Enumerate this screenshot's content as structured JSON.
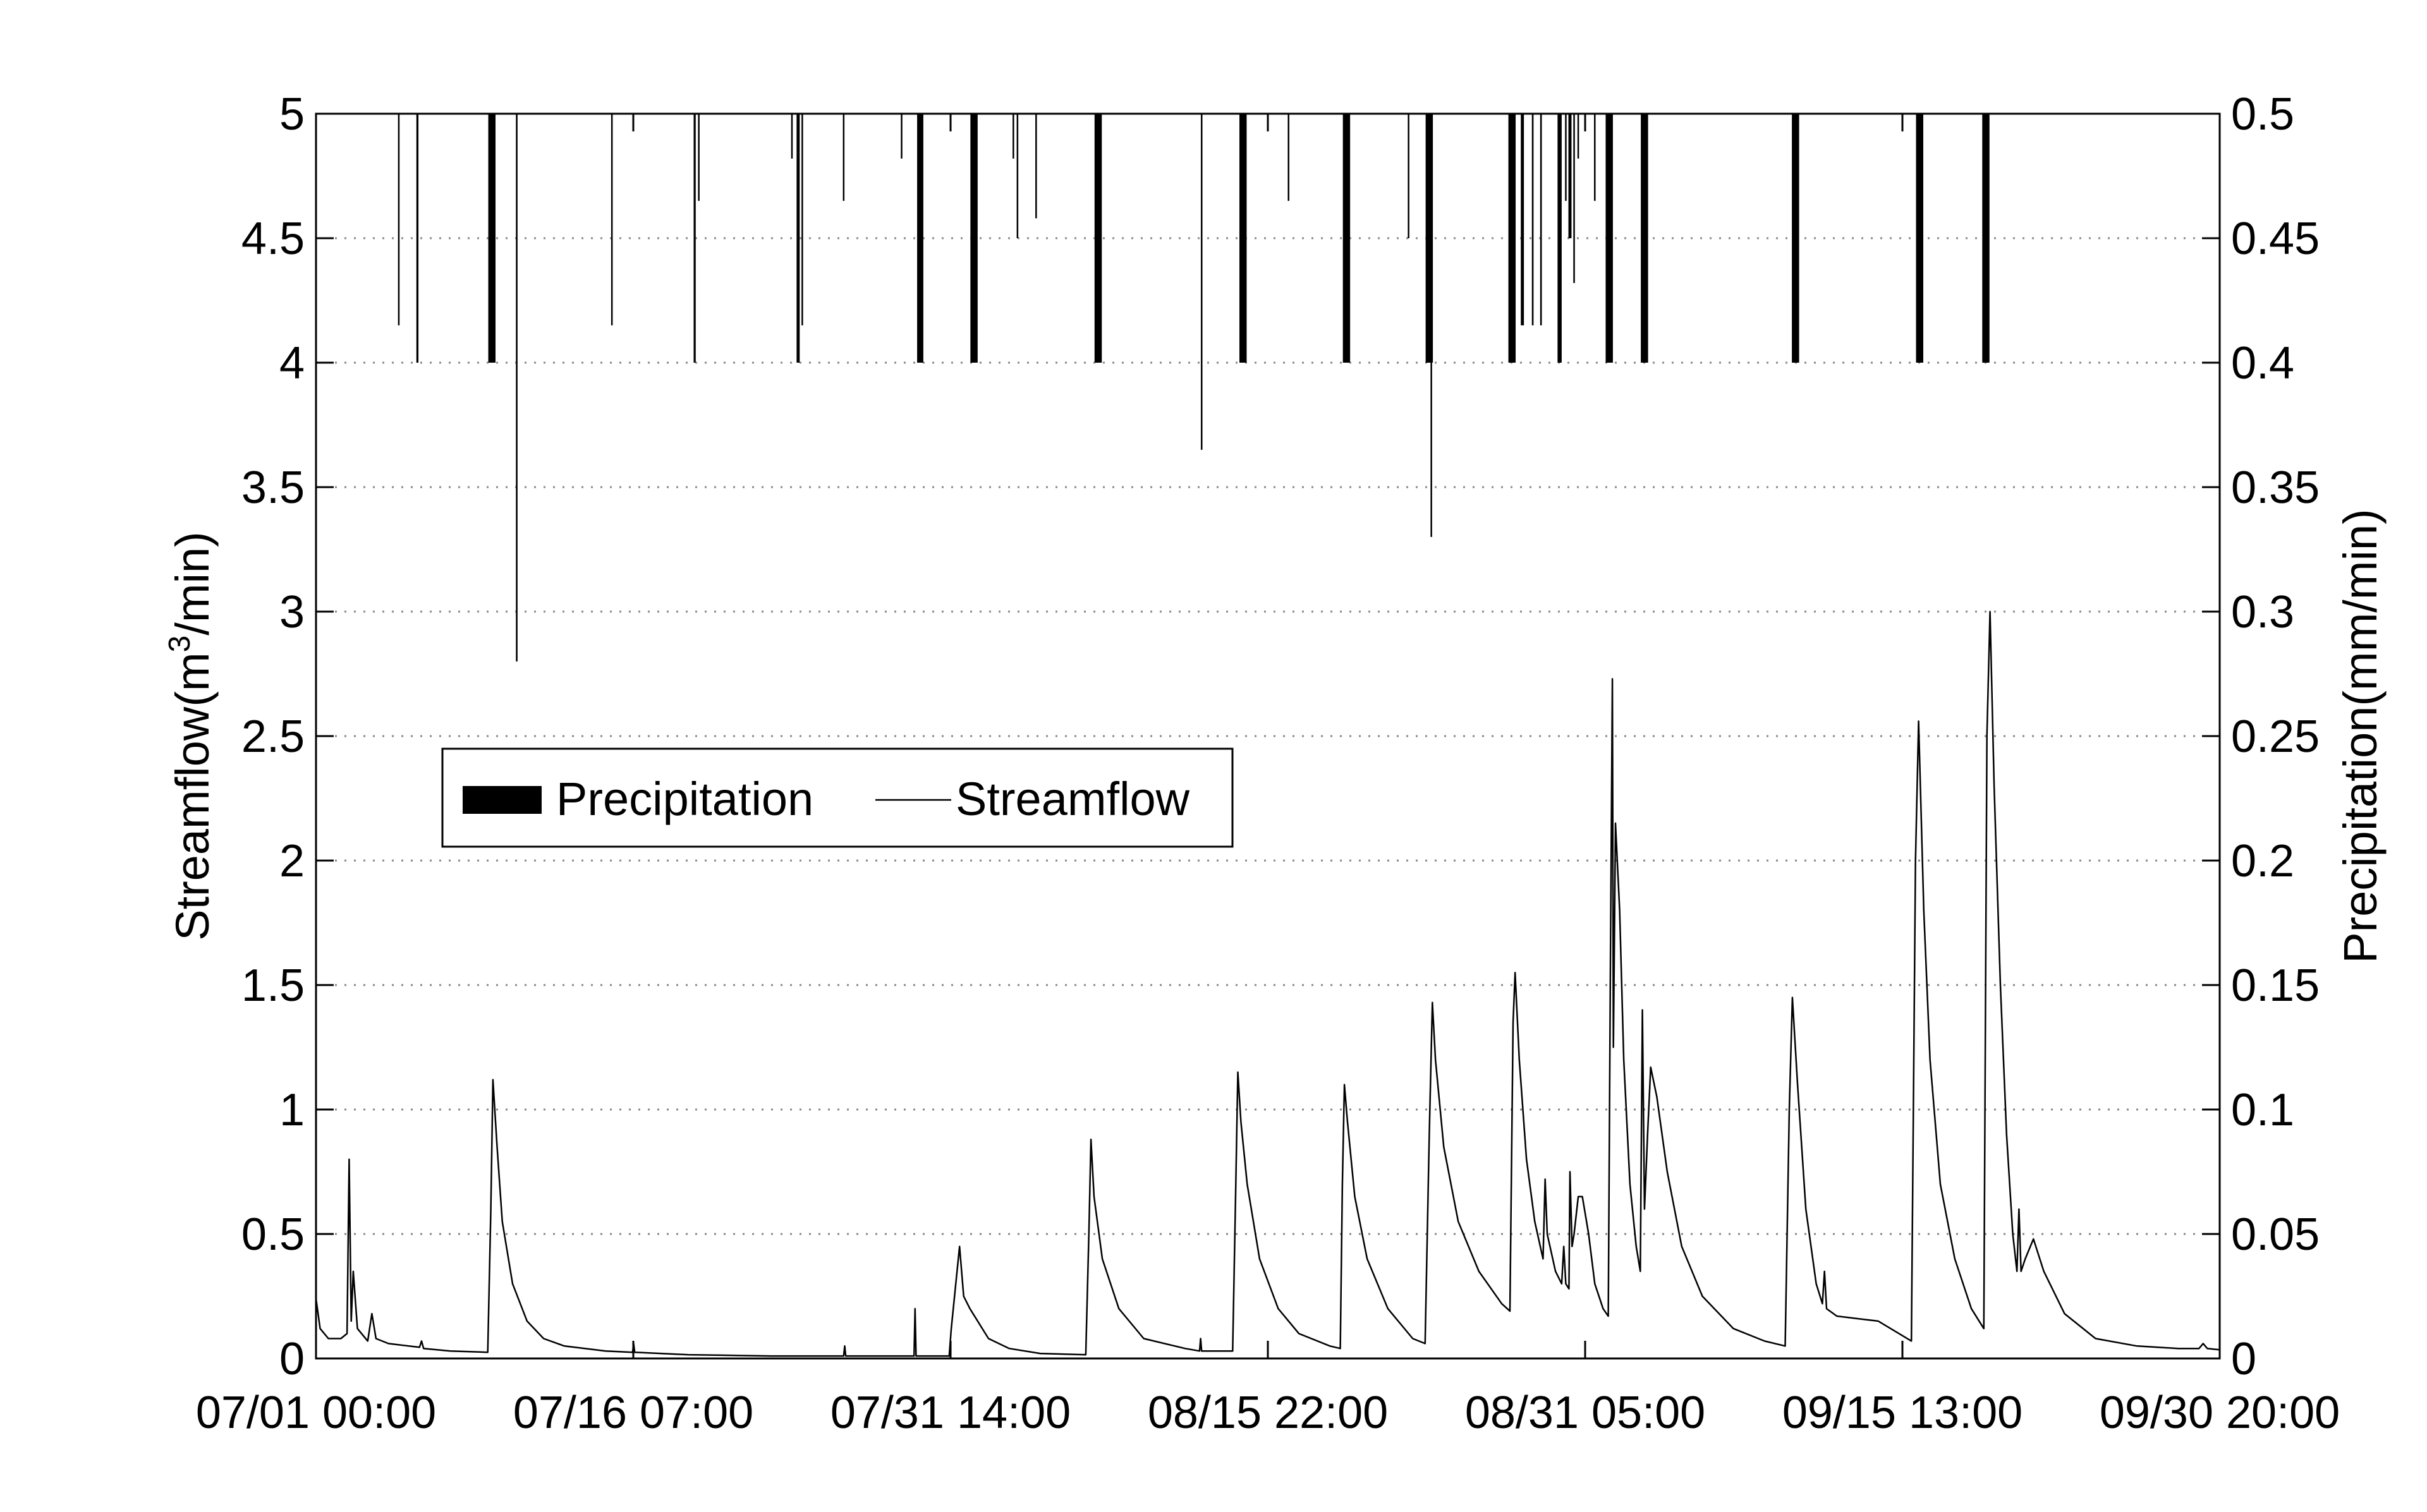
{
  "chart_data": {
    "type": "bar+line",
    "x_tick_labels": [
      "07/01 00:00",
      "07/16 07:00",
      "07/31 14:00",
      "08/15 22:00",
      "08/31 05:00",
      "09/15 13:00",
      "09/30 20:00"
    ],
    "x_range": [
      0,
      92
    ],
    "left_axis": {
      "label_main": "Streamflow(m",
      "label_sup": "3",
      "label_end": "/min)",
      "range": [
        0,
        5
      ],
      "ticks": [
        "0",
        "0.5",
        "1",
        "1.5",
        "2",
        "2.5",
        "3",
        "3.5",
        "4",
        "4.5",
        "5"
      ]
    },
    "right_axis": {
      "label": "Precipitation(mm/min)",
      "range": [
        0,
        0.5
      ],
      "inverted": true,
      "ticks": [
        "0",
        "0.05",
        "0.1",
        "0.15",
        "0.2",
        "0.25",
        "0.3",
        "0.35",
        "0.4",
        "0.45",
        "0.5"
      ]
    },
    "grid": "horizontal-dotted",
    "legend": {
      "placement": "center-left",
      "entries": [
        "Precipitation",
        "Streamflow"
      ]
    },
    "precipitation": {
      "name": "Precipitation",
      "bars": [
        {
          "x": 4.0,
          "v": 0.085,
          "w": 0.06
        },
        {
          "x": 4.9,
          "v": 0.1,
          "w": 0.1
        },
        {
          "x": 8.5,
          "v": 0.1,
          "w": 0.35
        },
        {
          "x": 9.7,
          "v": 0.22,
          "w": 0.08
        },
        {
          "x": 14.3,
          "v": 0.085,
          "w": 0.06
        },
        {
          "x": 18.3,
          "v": 0.1,
          "w": 0.1
        },
        {
          "x": 18.5,
          "v": 0.035,
          "w": 0.06
        },
        {
          "x": 23.0,
          "v": 0.018,
          "w": 0.06
        },
        {
          "x": 23.3,
          "v": 0.1,
          "w": 0.15
        },
        {
          "x": 23.5,
          "v": 0.085,
          "w": 0.06
        },
        {
          "x": 25.5,
          "v": 0.035,
          "w": 0.06
        },
        {
          "x": 28.3,
          "v": 0.018,
          "w": 0.06
        },
        {
          "x": 29.2,
          "v": 0.1,
          "w": 0.3
        },
        {
          "x": 31.8,
          "v": 0.1,
          "w": 0.35
        },
        {
          "x": 33.7,
          "v": 0.018,
          "w": 0.06
        },
        {
          "x": 33.9,
          "v": 0.05,
          "w": 0.06
        },
        {
          "x": 34.8,
          "v": 0.042,
          "w": 0.06
        },
        {
          "x": 37.8,
          "v": 0.1,
          "w": 0.35
        },
        {
          "x": 42.8,
          "v": 0.135,
          "w": 0.06
        },
        {
          "x": 44.8,
          "v": 0.1,
          "w": 0.35
        },
        {
          "x": 47.0,
          "v": 0.035,
          "w": 0.06
        },
        {
          "x": 49.8,
          "v": 0.1,
          "w": 0.35
        },
        {
          "x": 52.8,
          "v": 0.05,
          "w": 0.06
        },
        {
          "x": 53.8,
          "v": 0.1,
          "w": 0.35
        },
        {
          "x": 53.9,
          "v": 0.17,
          "w": 0.06
        },
        {
          "x": 57.8,
          "v": 0.1,
          "w": 0.35
        },
        {
          "x": 58.3,
          "v": 0.085,
          "w": 0.15
        },
        {
          "x": 58.8,
          "v": 0.085,
          "w": 0.08
        },
        {
          "x": 59.2,
          "v": 0.085,
          "w": 0.08
        },
        {
          "x": 60.1,
          "v": 0.1,
          "w": 0.2
        },
        {
          "x": 60.4,
          "v": 0.035,
          "w": 0.06
        },
        {
          "x": 60.6,
          "v": 0.05,
          "w": 0.15
        },
        {
          "x": 60.8,
          "v": 0.068,
          "w": 0.06
        },
        {
          "x": 61.0,
          "v": 0.018,
          "w": 0.06
        },
        {
          "x": 61.8,
          "v": 0.035,
          "w": 0.06
        },
        {
          "x": 62.5,
          "v": 0.1,
          "w": 0.35
        },
        {
          "x": 64.2,
          "v": 0.1,
          "w": 0.35
        },
        {
          "x": 71.5,
          "v": 0.1,
          "w": 0.35
        },
        {
          "x": 77.5,
          "v": 0.1,
          "w": 0.35
        },
        {
          "x": 80.7,
          "v": 0.1,
          "w": 0.35
        }
      ]
    },
    "streamflow": {
      "name": "Streamflow",
      "points": [
        [
          0,
          0.24
        ],
        [
          0.2,
          0.12
        ],
        [
          0.6,
          0.08
        ],
        [
          1.2,
          0.08
        ],
        [
          1.5,
          0.1
        ],
        [
          1.6,
          0.8
        ],
        [
          1.7,
          0.15
        ],
        [
          1.8,
          0.35
        ],
        [
          2.0,
          0.12
        ],
        [
          2.5,
          0.07
        ],
        [
          2.7,
          0.18
        ],
        [
          2.9,
          0.08
        ],
        [
          3.5,
          0.06
        ],
        [
          5.0,
          0.045
        ],
        [
          5.1,
          0.07
        ],
        [
          5.2,
          0.04
        ],
        [
          6.5,
          0.03
        ],
        [
          8.3,
          0.025
        ],
        [
          8.45,
          0.6
        ],
        [
          8.55,
          1.12
        ],
        [
          8.75,
          0.85
        ],
        [
          9.0,
          0.55
        ],
        [
          9.5,
          0.3
        ],
        [
          10.2,
          0.15
        ],
        [
          11,
          0.08
        ],
        [
          12,
          0.05
        ],
        [
          14,
          0.03
        ],
        [
          15.3,
          0.025
        ],
        [
          15.35,
          0.06
        ],
        [
          15.4,
          0.025
        ],
        [
          18,
          0.015
        ],
        [
          22,
          0.01
        ],
        [
          25.5,
          0.01
        ],
        [
          25.55,
          0.05
        ],
        [
          25.6,
          0.01
        ],
        [
          28.9,
          0.01
        ],
        [
          28.95,
          0.2
        ],
        [
          29.0,
          0.01
        ],
        [
          30.6,
          0.01
        ],
        [
          30.7,
          0.12
        ],
        [
          31.1,
          0.45
        ],
        [
          31.3,
          0.25
        ],
        [
          31.6,
          0.2
        ],
        [
          32.5,
          0.08
        ],
        [
          33.5,
          0.04
        ],
        [
          35,
          0.02
        ],
        [
          37.2,
          0.015
        ],
        [
          37.35,
          0.5
        ],
        [
          37.45,
          0.88
        ],
        [
          37.6,
          0.65
        ],
        [
          38.0,
          0.4
        ],
        [
          38.8,
          0.2
        ],
        [
          40,
          0.08
        ],
        [
          42,
          0.04
        ],
        [
          42.7,
          0.03
        ],
        [
          42.75,
          0.08
        ],
        [
          42.8,
          0.03
        ],
        [
          44.3,
          0.03
        ],
        [
          44.45,
          0.7
        ],
        [
          44.55,
          1.15
        ],
        [
          44.7,
          0.95
        ],
        [
          45.0,
          0.7
        ],
        [
          45.6,
          0.4
        ],
        [
          46.5,
          0.2
        ],
        [
          47.5,
          0.1
        ],
        [
          49,
          0.05
        ],
        [
          49.5,
          0.04
        ],
        [
          49.6,
          0.7
        ],
        [
          49.7,
          1.1
        ],
        [
          49.85,
          0.95
        ],
        [
          50.2,
          0.65
        ],
        [
          50.8,
          0.4
        ],
        [
          51.8,
          0.2
        ],
        [
          53,
          0.08
        ],
        [
          53.6,
          0.06
        ],
        [
          53.8,
          0.9
        ],
        [
          53.95,
          1.43
        ],
        [
          54.1,
          1.2
        ],
        [
          54.5,
          0.85
        ],
        [
          55.2,
          0.55
        ],
        [
          56.2,
          0.35
        ],
        [
          57.3,
          0.22
        ],
        [
          57.7,
          0.19
        ],
        [
          57.85,
          1.35
        ],
        [
          57.95,
          1.55
        ],
        [
          58.15,
          1.2
        ],
        [
          58.5,
          0.8
        ],
        [
          58.9,
          0.55
        ],
        [
          59.3,
          0.4
        ],
        [
          59.4,
          0.72
        ],
        [
          59.5,
          0.5
        ],
        [
          59.9,
          0.35
        ],
        [
          60.2,
          0.3
        ],
        [
          60.3,
          0.45
        ],
        [
          60.4,
          0.3
        ],
        [
          60.55,
          0.28
        ],
        [
          60.6,
          0.75
        ],
        [
          60.7,
          0.45
        ],
        [
          60.8,
          0.5
        ],
        [
          61.0,
          0.65
        ],
        [
          61.2,
          0.65
        ],
        [
          61.5,
          0.5
        ],
        [
          61.8,
          0.3
        ],
        [
          62.2,
          0.2
        ],
        [
          62.45,
          0.17
        ],
        [
          62.55,
          1.5
        ],
        [
          62.65,
          2.73
        ],
        [
          62.7,
          1.25
        ],
        [
          62.8,
          2.15
        ],
        [
          63.0,
          1.8
        ],
        [
          63.2,
          1.2
        ],
        [
          63.5,
          0.7
        ],
        [
          63.8,
          0.45
        ],
        [
          64.0,
          0.35
        ],
        [
          64.1,
          1.4
        ],
        [
          64.2,
          0.6
        ],
        [
          64.35,
          0.9
        ],
        [
          64.5,
          1.17
        ],
        [
          64.8,
          1.05
        ],
        [
          65.3,
          0.75
        ],
        [
          66.0,
          0.45
        ],
        [
          67,
          0.25
        ],
        [
          68.5,
          0.12
        ],
        [
          70,
          0.07
        ],
        [
          71.0,
          0.05
        ],
        [
          71.2,
          1.0
        ],
        [
          71.35,
          1.45
        ],
        [
          71.6,
          1.1
        ],
        [
          72.0,
          0.6
        ],
        [
          72.5,
          0.3
        ],
        [
          72.8,
          0.22
        ],
        [
          72.9,
          0.35
        ],
        [
          73.0,
          0.2
        ],
        [
          73.5,
          0.17
        ],
        [
          74.5,
          0.16
        ],
        [
          75.5,
          0.15
        ],
        [
          76.5,
          0.1
        ],
        [
          77.1,
          0.07
        ],
        [
          77.3,
          2.0
        ],
        [
          77.45,
          2.56
        ],
        [
          77.7,
          1.8
        ],
        [
          78.0,
          1.2
        ],
        [
          78.5,
          0.7
        ],
        [
          79.2,
          0.4
        ],
        [
          80.0,
          0.2
        ],
        [
          80.6,
          0.12
        ],
        [
          80.75,
          2.5
        ],
        [
          80.9,
          3.0
        ],
        [
          81.1,
          2.3
        ],
        [
          81.4,
          1.5
        ],
        [
          81.7,
          0.9
        ],
        [
          82.0,
          0.5
        ],
        [
          82.2,
          0.35
        ],
        [
          82.3,
          0.6
        ],
        [
          82.4,
          0.35
        ],
        [
          82.6,
          0.4
        ],
        [
          83.0,
          0.48
        ],
        [
          83.5,
          0.35
        ],
        [
          84.5,
          0.18
        ],
        [
          86,
          0.08
        ],
        [
          88,
          0.05
        ],
        [
          90,
          0.04
        ],
        [
          91,
          0.04
        ],
        [
          91.2,
          0.06
        ],
        [
          91.4,
          0.04
        ],
        [
          92,
          0.035
        ]
      ]
    }
  }
}
